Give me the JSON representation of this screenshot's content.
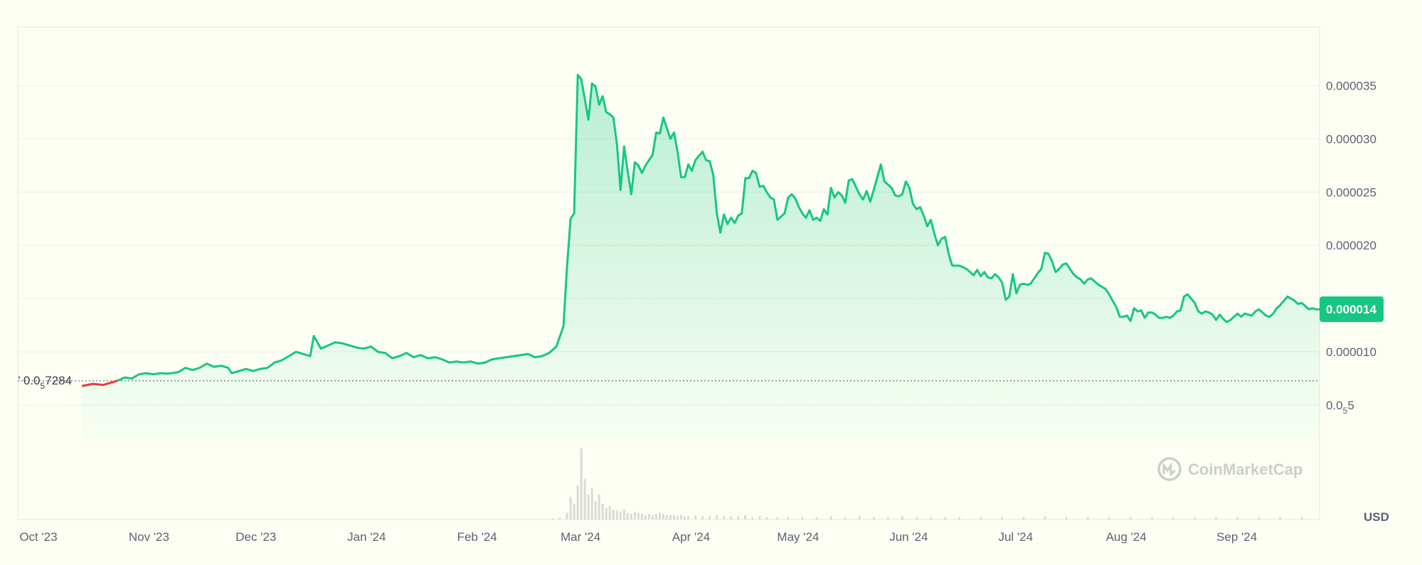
{
  "brand": {
    "name": "CoinMarketCap",
    "up_color": "#16c784",
    "down_color": "#ea3943",
    "grid_color": "#eceee6",
    "axis_text_color": "#5b6270"
  },
  "chart_data": {
    "type": "area",
    "currency": "USD",
    "ylim": [
      1e-06,
      4.05e-05
    ],
    "y_ticks": [
      {
        "value": 5e-06,
        "base": "0.0",
        "sub": "5",
        "rest": "5"
      },
      {
        "value": 1e-05,
        "label": "0.000010"
      },
      {
        "value": 1.5e-05,
        "label": ""
      },
      {
        "value": 2e-05,
        "label": "0.000020"
      },
      {
        "value": 2.5e-05,
        "label": "0.000025"
      },
      {
        "value": 3e-05,
        "label": "0.000030"
      },
      {
        "value": 3.5e-05,
        "label": "0.000035"
      }
    ],
    "x_ticks": [
      {
        "t": 0,
        "label": "Oct '23"
      },
      {
        "t": 31,
        "label": "Nov '23"
      },
      {
        "t": 61,
        "label": "Dec '23"
      },
      {
        "t": 92,
        "label": "Jan '24"
      },
      {
        "t": 123,
        "label": "Feb '24"
      },
      {
        "t": 152,
        "label": "Mar '24"
      },
      {
        "t": 183,
        "label": "Apr '24"
      },
      {
        "t": 213,
        "label": "May '24"
      },
      {
        "t": 244,
        "label": "Jun '24"
      },
      {
        "t": 274,
        "label": "Jul '24"
      },
      {
        "t": 305,
        "label": "Aug '24"
      },
      {
        "t": 336,
        "label": "Sep '24"
      }
    ],
    "t_range": [
      0,
      365
    ],
    "reference": {
      "value": 7.284e-06,
      "base": "0.0",
      "sub": "5",
      "rest": "7284"
    },
    "current": {
      "value": 1.4e-05,
      "label": "0.000014"
    },
    "price_series": [
      [
        18,
        6.8
      ],
      [
        21,
        7.0
      ],
      [
        24,
        6.9
      ],
      [
        26,
        7.1
      ],
      [
        28,
        7.3
      ],
      [
        30,
        7.6
      ],
      [
        32,
        7.5
      ],
      [
        34,
        7.9
      ],
      [
        36,
        8.0
      ],
      [
        38,
        7.9
      ],
      [
        40,
        8.0
      ],
      [
        42,
        7.95
      ],
      [
        45,
        8.1
      ],
      [
        47,
        8.5
      ],
      [
        49,
        8.3
      ],
      [
        51,
        8.5
      ],
      [
        53,
        8.9
      ],
      [
        55,
        8.6
      ],
      [
        57,
        8.7
      ],
      [
        59,
        8.5
      ],
      [
        60,
        8.0
      ],
      [
        62,
        8.2
      ],
      [
        64,
        8.4
      ],
      [
        66,
        8.2
      ],
      [
        68,
        8.4
      ],
      [
        70,
        8.5
      ],
      [
        72,
        9.0
      ],
      [
        74,
        9.2
      ],
      [
        76,
        9.6
      ],
      [
        78,
        10.0
      ],
      [
        80,
        9.8
      ],
      [
        82,
        9.6
      ],
      [
        83,
        11.5
      ],
      [
        85,
        10.3
      ],
      [
        87,
        10.6
      ],
      [
        89,
        10.9
      ],
      [
        91,
        10.8
      ],
      [
        93,
        10.6
      ],
      [
        95,
        10.4
      ],
      [
        97,
        10.3
      ],
      [
        99,
        10.5
      ],
      [
        101,
        10.0
      ],
      [
        103,
        9.9
      ],
      [
        105,
        9.4
      ],
      [
        107,
        9.6
      ],
      [
        109,
        9.9
      ],
      [
        111,
        9.5
      ],
      [
        113,
        9.7
      ],
      [
        115,
        9.4
      ],
      [
        117,
        9.5
      ],
      [
        119,
        9.3
      ],
      [
        121,
        9.0
      ],
      [
        123,
        9.1
      ],
      [
        125,
        9.0
      ],
      [
        127,
        9.1
      ],
      [
        129,
        8.9
      ],
      [
        131,
        9.0
      ],
      [
        133,
        9.3
      ],
      [
        135,
        9.4
      ],
      [
        137,
        9.5
      ],
      [
        139,
        9.6
      ],
      [
        141,
        9.7
      ],
      [
        143,
        9.8
      ],
      [
        145,
        9.5
      ],
      [
        147,
        9.6
      ],
      [
        149,
        9.9
      ],
      [
        151,
        10.5
      ],
      [
        153,
        12.4
      ],
      [
        154,
        18.0
      ],
      [
        155,
        22.5
      ],
      [
        156,
        23.0
      ],
      [
        157,
        36.0
      ],
      [
        158,
        35.6
      ],
      [
        160,
        31.8
      ],
      [
        161,
        35.2
      ],
      [
        162,
        34.9
      ],
      [
        163,
        33.2
      ],
      [
        164,
        34.0
      ],
      [
        165,
        32.5
      ],
      [
        166,
        32.3
      ],
      [
        167,
        32.0
      ],
      [
        168,
        29.5
      ],
      [
        169,
        25.2
      ],
      [
        170,
        29.3
      ],
      [
        171,
        27.0
      ],
      [
        172,
        24.8
      ],
      [
        173,
        27.8
      ],
      [
        174,
        27.5
      ],
      [
        175,
        26.8
      ],
      [
        176,
        27.5
      ],
      [
        178,
        28.5
      ],
      [
        179,
        30.6
      ],
      [
        180,
        30.5
      ],
      [
        181,
        32.0
      ],
      [
        182,
        31.0
      ],
      [
        183,
        30.0
      ],
      [
        184,
        30.6
      ],
      [
        185,
        28.8
      ],
      [
        186,
        26.4
      ],
      [
        187,
        26.4
      ],
      [
        188,
        27.6
      ],
      [
        189,
        27.0
      ],
      [
        190,
        28.0
      ],
      [
        191,
        28.4
      ],
      [
        192,
        28.8
      ],
      [
        193,
        28.0
      ],
      [
        194,
        27.9
      ],
      [
        195,
        26.6
      ],
      [
        196,
        23.0
      ],
      [
        197,
        21.2
      ],
      [
        198,
        22.9
      ],
      [
        199,
        22.0
      ],
      [
        200,
        22.6
      ],
      [
        201,
        22.1
      ],
      [
        202,
        22.8
      ],
      [
        203,
        23.0
      ],
      [
        204,
        26.3
      ],
      [
        205,
        26.3
      ],
      [
        206,
        27.0
      ],
      [
        207,
        26.8
      ],
      [
        208,
        25.5
      ],
      [
        209,
        25.6
      ],
      [
        210,
        25.0
      ],
      [
        211,
        24.5
      ],
      [
        212,
        24.3
      ],
      [
        213,
        22.4
      ],
      [
        214,
        22.7
      ],
      [
        215,
        23.0
      ],
      [
        216,
        24.5
      ],
      [
        217,
        24.8
      ],
      [
        218,
        24.4
      ],
      [
        219,
        23.6
      ],
      [
        220,
        23.0
      ],
      [
        221,
        22.6
      ],
      [
        222,
        23.3
      ],
      [
        223,
        22.4
      ],
      [
        224,
        22.6
      ],
      [
        225,
        22.3
      ],
      [
        226,
        23.4
      ],
      [
        227,
        22.9
      ],
      [
        228,
        25.4
      ],
      [
        229,
        24.5
      ],
      [
        230,
        25.0
      ],
      [
        231,
        24.7
      ],
      [
        232,
        24.0
      ],
      [
        233,
        26.1
      ],
      [
        234,
        26.2
      ],
      [
        235,
        25.5
      ],
      [
        236,
        24.8
      ],
      [
        237,
        24.3
      ],
      [
        238,
        25.1
      ],
      [
        239,
        24.1
      ],
      [
        240,
        25.2
      ],
      [
        241,
        26.4
      ],
      [
        242,
        27.6
      ],
      [
        243,
        26.0
      ],
      [
        244,
        25.7
      ],
      [
        245,
        25.4
      ],
      [
        246,
        24.7
      ],
      [
        247,
        24.6
      ],
      [
        248,
        24.8
      ],
      [
        249,
        26.0
      ],
      [
        250,
        25.4
      ],
      [
        251,
        23.9
      ],
      [
        252,
        23.4
      ],
      [
        253,
        23.6
      ],
      [
        254,
        22.8
      ],
      [
        255,
        21.8
      ],
      [
        256,
        22.4
      ],
      [
        257,
        21.1
      ],
      [
        258,
        20.0
      ],
      [
        259,
        20.6
      ],
      [
        260,
        20.8
      ],
      [
        261,
        19.2
      ],
      [
        262,
        18.1
      ],
      [
        264,
        18.1
      ],
      [
        266,
        17.8
      ],
      [
        267,
        17.5
      ],
      [
        268,
        17.2
      ],
      [
        269,
        17.7
      ],
      [
        270,
        17.1
      ],
      [
        271,
        17.5
      ],
      [
        272,
        17.0
      ],
      [
        273,
        16.9
      ],
      [
        274,
        17.3
      ],
      [
        275,
        17.0
      ],
      [
        276,
        16.5
      ],
      [
        277,
        14.9
      ],
      [
        278,
        15.2
      ],
      [
        279,
        17.3
      ],
      [
        280,
        15.5
      ],
      [
        281,
        16.3
      ],
      [
        282,
        16.4
      ],
      [
        283,
        16.3
      ],
      [
        284,
        16.4
      ],
      [
        285,
        16.9
      ],
      [
        286,
        17.4
      ],
      [
        287,
        17.8
      ],
      [
        288,
        19.3
      ],
      [
        289,
        19.2
      ],
      [
        290,
        18.5
      ],
      [
        291,
        17.5
      ],
      [
        292,
        17.8
      ],
      [
        293,
        18.2
      ],
      [
        294,
        18.3
      ],
      [
        295,
        17.8
      ],
      [
        296,
        17.3
      ],
      [
        297,
        17.0
      ],
      [
        298,
        16.8
      ],
      [
        299,
        16.4
      ],
      [
        300,
        16.8
      ],
      [
        301,
        16.9
      ],
      [
        302,
        16.6
      ],
      [
        303,
        16.3
      ],
      [
        304,
        16.1
      ],
      [
        305,
        15.9
      ],
      [
        306,
        15.4
      ],
      [
        307,
        14.8
      ],
      [
        308,
        14.2
      ],
      [
        309,
        13.3
      ],
      [
        310,
        13.3
      ],
      [
        311,
        13.4
      ],
      [
        312,
        12.9
      ],
      [
        313,
        14.1
      ],
      [
        314,
        13.8
      ],
      [
        315,
        13.9
      ],
      [
        316,
        13.2
      ],
      [
        317,
        13.7
      ],
      [
        318,
        13.7
      ],
      [
        319,
        13.5
      ],
      [
        320,
        13.2
      ],
      [
        321,
        13.2
      ],
      [
        322,
        13.3
      ],
      [
        323,
        13.2
      ],
      [
        324,
        13.4
      ],
      [
        325,
        13.8
      ],
      [
        326,
        13.9
      ],
      [
        327,
        15.2
      ],
      [
        328,
        15.4
      ],
      [
        329,
        15.0
      ],
      [
        330,
        14.6
      ],
      [
        331,
        13.8
      ],
      [
        332,
        13.6
      ],
      [
        333,
        13.8
      ],
      [
        334,
        13.7
      ],
      [
        335,
        13.5
      ],
      [
        336,
        13.0
      ],
      [
        337,
        13.5
      ],
      [
        338,
        13.1
      ],
      [
        339,
        12.8
      ],
      [
        340,
        13.0
      ],
      [
        341,
        13.3
      ],
      [
        342,
        13.6
      ],
      [
        343,
        13.3
      ],
      [
        344,
        13.6
      ],
      [
        345,
        13.5
      ],
      [
        346,
        13.4
      ],
      [
        347,
        13.8
      ],
      [
        348,
        14.0
      ],
      [
        349,
        13.7
      ],
      [
        350,
        13.4
      ],
      [
        351,
        13.3
      ],
      [
        352,
        13.6
      ],
      [
        353,
        14.1
      ],
      [
        354,
        14.4
      ],
      [
        355,
        14.8
      ],
      [
        356,
        15.2
      ],
      [
        357,
        15.0
      ],
      [
        358,
        14.8
      ],
      [
        359,
        14.5
      ],
      [
        360,
        14.6
      ],
      [
        361,
        14.3
      ],
      [
        362,
        14.0
      ],
      [
        363,
        14.1
      ],
      [
        364,
        14.0
      ],
      [
        365,
        14.0
      ]
    ],
    "volume_series": [
      [
        150,
        1
      ],
      [
        152,
        2
      ],
      [
        154,
        6
      ],
      [
        155,
        20
      ],
      [
        156,
        14
      ],
      [
        157,
        30
      ],
      [
        158,
        63
      ],
      [
        159,
        36
      ],
      [
        160,
        22
      ],
      [
        161,
        28
      ],
      [
        162,
        16
      ],
      [
        163,
        22
      ],
      [
        164,
        14
      ],
      [
        165,
        10
      ],
      [
        166,
        12
      ],
      [
        167,
        9
      ],
      [
        168,
        8
      ],
      [
        169,
        7
      ],
      [
        170,
        9
      ],
      [
        171,
        6
      ],
      [
        172,
        5
      ],
      [
        173,
        7
      ],
      [
        174,
        6
      ],
      [
        175,
        5
      ],
      [
        176,
        4
      ],
      [
        177,
        5
      ],
      [
        178,
        4
      ],
      [
        179,
        5
      ],
      [
        180,
        6
      ],
      [
        181,
        5
      ],
      [
        182,
        4
      ],
      [
        183,
        4
      ],
      [
        184,
        4
      ],
      [
        185,
        3
      ],
      [
        186,
        4
      ],
      [
        187,
        3
      ],
      [
        188,
        3
      ],
      [
        190,
        4
      ],
      [
        192,
        3
      ],
      [
        194,
        3
      ],
      [
        196,
        4
      ],
      [
        198,
        3
      ],
      [
        200,
        3
      ],
      [
        202,
        3
      ],
      [
        204,
        4
      ],
      [
        206,
        2
      ],
      [
        208,
        3
      ],
      [
        210,
        2
      ],
      [
        213,
        2
      ],
      [
        216,
        2
      ],
      [
        220,
        2
      ],
      [
        224,
        2
      ],
      [
        228,
        3
      ],
      [
        232,
        2
      ],
      [
        236,
        3
      ],
      [
        240,
        2
      ],
      [
        244,
        2
      ],
      [
        248,
        3
      ],
      [
        252,
        2
      ],
      [
        256,
        2
      ],
      [
        260,
        2
      ],
      [
        264,
        2
      ],
      [
        270,
        2
      ],
      [
        276,
        2
      ],
      [
        282,
        2
      ],
      [
        288,
        3
      ],
      [
        294,
        2
      ],
      [
        300,
        2
      ],
      [
        306,
        2
      ],
      [
        312,
        2
      ],
      [
        318,
        2
      ],
      [
        324,
        2
      ],
      [
        330,
        2
      ],
      [
        336,
        2
      ],
      [
        342,
        2
      ],
      [
        348,
        2
      ],
      [
        354,
        2
      ],
      [
        360,
        2
      ]
    ]
  },
  "labels": {
    "unit": "USD",
    "watermark": "CoinMarketCap"
  }
}
